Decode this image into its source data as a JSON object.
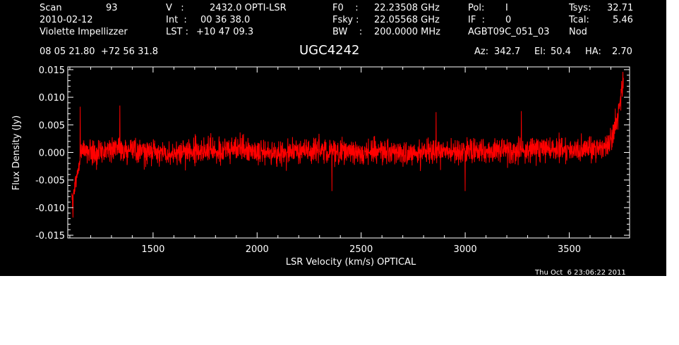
{
  "header": {
    "col1": {
      "scan_label": "Scan",
      "scan_value": "93",
      "date": "2010-02-12",
      "observer": "Violette Impellizzer"
    },
    "col2": {
      "v_label": "V   :",
      "v_value": "2432.0 OPTI-LSR",
      "int_label": "Int  :",
      "int_value": "00 36 38.0",
      "lst_label": "LST :",
      "lst_value": "+10 47 09.3"
    },
    "col3": {
      "f0_label": "F0    :",
      "f0_value": "22.23508 GHz",
      "fsky_label": "Fsky :",
      "fsky_value": "22.05568 GHz",
      "bw_label": "BW    :",
      "bw_value": "200.0000 MHz"
    },
    "col4": {
      "pol_label": "Pol:",
      "pol_value": "I",
      "if_label": "IF  :",
      "if_value": "0",
      "project": "AGBT09C_051_03"
    },
    "col5": {
      "tsys_label": "Tsys:",
      "tsys_value": "32.71",
      "tcal_label": "Tcal:",
      "tcal_value": "5.46",
      "proc": "Nod"
    },
    "coords": "08 05 21.80  +72 56 31.8",
    "source": "UGC4242",
    "az_label": "Az:",
    "az_value": "342.7",
    "el_label": "El:",
    "el_value": "50.4",
    "ha_label": "HA:",
    "ha_value": "2.70",
    "timestamp": "Thu Oct  6 23:06:22 2011"
  },
  "chart_data": {
    "type": "line",
    "xlabel": "LSR Velocity (km/s) OPTICAL",
    "ylabel": "Flux Density (Jy)",
    "xlim": [
      1090,
      3790
    ],
    "ylim": [
      -0.0155,
      0.0155
    ],
    "x_ticks": [
      1500,
      2000,
      2500,
      3000,
      3500
    ],
    "x_tick_labels": [
      "1500",
      "2000",
      "2500",
      "3000",
      "3500"
    ],
    "y_ticks": [
      -0.015,
      -0.01,
      -0.005,
      0.0,
      0.005,
      0.01,
      0.015
    ],
    "y_tick_labels": [
      "-0.015",
      "-0.010",
      "-0.005",
      "0.000",
      "0.005",
      "0.010",
      "0.015"
    ],
    "grid": false,
    "series": [
      {
        "color": "#ff0000",
        "x_start": 1110,
        "x_end": 3760,
        "baseline": [
          [
            1110,
            -0.009
          ],
          [
            1125,
            -0.0065
          ],
          [
            1140,
            -0.003
          ],
          [
            1160,
            0.001
          ],
          [
            1180,
            0.0
          ],
          [
            1200,
            -0.0005
          ],
          [
            1300,
            0.0005
          ],
          [
            1400,
            0.0005
          ],
          [
            1500,
            0.0
          ],
          [
            1600,
            0.0
          ],
          [
            1700,
            0.0003
          ],
          [
            1800,
            0.0003
          ],
          [
            1900,
            0.0005
          ],
          [
            2000,
            0.0002
          ],
          [
            2100,
            0.0
          ],
          [
            2200,
            0.0003
          ],
          [
            2300,
            0.0005
          ],
          [
            2400,
            0.0
          ],
          [
            2500,
            0.0
          ],
          [
            2600,
            0.0003
          ],
          [
            2700,
            0.0
          ],
          [
            2800,
            0.0
          ],
          [
            2900,
            0.0003
          ],
          [
            3000,
            0.0003
          ],
          [
            3100,
            0.0
          ],
          [
            3200,
            0.0003
          ],
          [
            3300,
            0.0005
          ],
          [
            3400,
            0.0005
          ],
          [
            3500,
            0.0005
          ],
          [
            3600,
            0.0005
          ],
          [
            3680,
            0.001
          ],
          [
            3710,
            0.003
          ],
          [
            3730,
            0.006
          ],
          [
            3745,
            0.0095
          ],
          [
            3760,
            0.0125
          ]
        ],
        "noise_rms_jy": 0.0021,
        "peaks": [
          [
            1115,
            -0.0118
          ],
          [
            1150,
            0.0083
          ],
          [
            1340,
            0.0085
          ],
          [
            2360,
            -0.007
          ],
          [
            2860,
            0.0073
          ],
          [
            3000,
            -0.007
          ],
          [
            3270,
            0.0075
          ],
          [
            3758,
            0.0146
          ]
        ]
      }
    ]
  },
  "colors": {
    "background": "#000000",
    "trace": "#ff0000",
    "text": "#ffffff",
    "page": "#ffffff"
  }
}
